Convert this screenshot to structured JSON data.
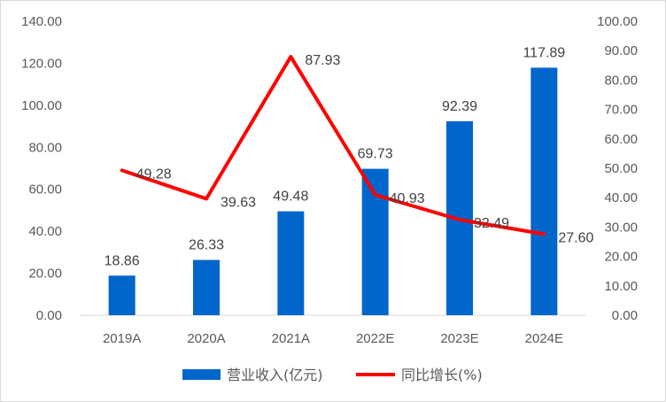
{
  "chart_data": {
    "type": "bar",
    "categories": [
      "2019A",
      "2020A",
      "2021A",
      "2022E",
      "2023E",
      "2024E"
    ],
    "series": [
      {
        "name": "营业收入(亿元)",
        "type": "bar",
        "axis": "left",
        "color": "#0066CC",
        "values": [
          18.86,
          26.33,
          49.48,
          69.73,
          92.39,
          117.89
        ],
        "labels": [
          "18.86",
          "26.33",
          "49.48",
          "69.73",
          "92.39",
          "117.89"
        ]
      },
      {
        "name": "同比增长(%)",
        "type": "line",
        "axis": "right",
        "color": "#FF0000",
        "values": [
          49.28,
          39.63,
          87.93,
          40.93,
          32.49,
          27.6
        ],
        "labels": [
          "49.28",
          "39.63",
          "87.93",
          "40.93",
          "32.49",
          "27.60"
        ]
      }
    ],
    "left_axis": {
      "ylim": [
        0,
        140
      ],
      "ticks": [
        "0.00",
        "20.00",
        "40.00",
        "60.00",
        "80.00",
        "100.00",
        "120.00",
        "140.00"
      ]
    },
    "right_axis": {
      "ylim": [
        0,
        100
      ],
      "ticks": [
        "0.00",
        "10.00",
        "20.00",
        "30.00",
        "40.00",
        "50.00",
        "60.00",
        "70.00",
        "80.00",
        "90.00",
        "100.00"
      ]
    },
    "grid": false,
    "legend": "bottom-center"
  }
}
